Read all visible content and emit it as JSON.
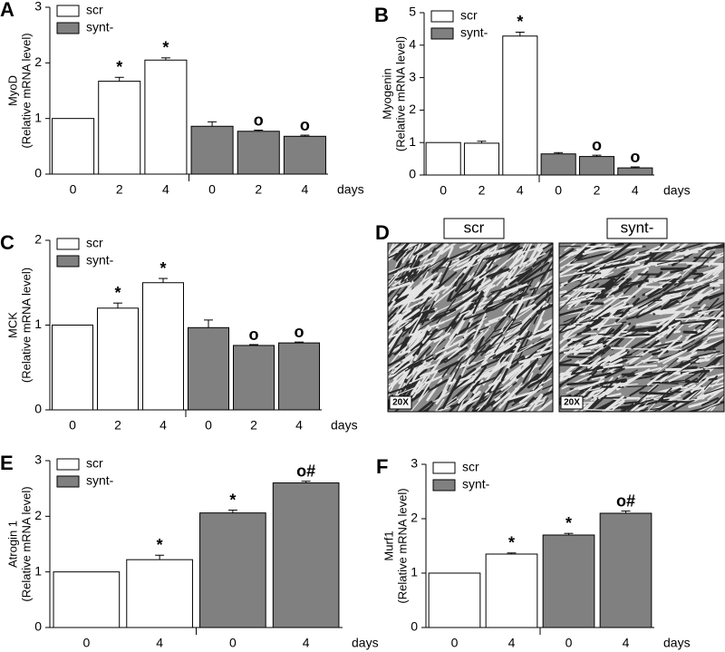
{
  "chart_data": [
    {
      "type": "bar",
      "panel": "A",
      "ylabel": [
        "MyoD",
        "(Relative mRNA level)"
      ],
      "xlabel": "days",
      "categories": [
        "0",
        "2",
        "4",
        "0",
        "2",
        "4"
      ],
      "ylim": [
        0,
        3
      ],
      "yticks": [
        0,
        1,
        2,
        3
      ],
      "series": [
        {
          "name": "scr",
          "color": "#ffffff",
          "values": [
            1,
            1.67,
            2.05,
            null,
            null,
            null
          ],
          "errors": [
            null,
            0.07,
            0.04,
            null,
            null,
            null
          ]
        },
        {
          "name": "synt-",
          "color": "#808080",
          "values": [
            null,
            null,
            null,
            0.86,
            0.77,
            0.68
          ],
          "errors": [
            null,
            null,
            null,
            0.08,
            0.02,
            0.02
          ]
        }
      ],
      "marks": [
        null,
        "*",
        "*",
        null,
        "o",
        "o"
      ]
    },
    {
      "type": "bar",
      "panel": "B",
      "ylabel": [
        "Myogenin",
        "(Relative mRNA level)"
      ],
      "xlabel": "days",
      "categories": [
        "0",
        "2",
        "4",
        "0",
        "2",
        "4"
      ],
      "ylim": [
        0,
        5
      ],
      "yticks": [
        0,
        1,
        2,
        3,
        4,
        5
      ],
      "series": [
        {
          "name": "scr",
          "color": "#ffffff",
          "values": [
            1,
            0.98,
            4.28,
            null,
            null,
            null
          ],
          "errors": [
            null,
            0.06,
            0.12,
            null,
            null,
            null
          ]
        },
        {
          "name": "synt-",
          "color": "#808080",
          "values": [
            null,
            null,
            null,
            0.65,
            0.57,
            0.22
          ],
          "errors": [
            null,
            null,
            null,
            0.04,
            0.04,
            0.03
          ]
        }
      ],
      "marks": [
        null,
        null,
        "*",
        null,
        "o",
        "o"
      ]
    },
    {
      "type": "bar",
      "panel": "C",
      "ylabel": [
        "MCK",
        "(Relative mRNA level)"
      ],
      "xlabel": "days",
      "categories": [
        "0",
        "2",
        "4",
        "0",
        "2",
        "4"
      ],
      "ylim": [
        0,
        2
      ],
      "yticks": [
        0,
        1,
        2
      ],
      "series": [
        {
          "name": "scr",
          "color": "#ffffff",
          "values": [
            1,
            1.2,
            1.5,
            null,
            null,
            null
          ],
          "errors": [
            null,
            0.06,
            0.05,
            null,
            null,
            null
          ]
        },
        {
          "name": "synt-",
          "color": "#808080",
          "values": [
            null,
            null,
            null,
            0.97,
            0.76,
            0.79
          ],
          "errors": [
            null,
            null,
            null,
            0.09,
            0.01,
            0.01
          ]
        }
      ],
      "marks": [
        null,
        "*",
        "*",
        null,
        "o",
        "o"
      ]
    },
    {
      "type": "bar",
      "panel": "E",
      "ylabel": [
        "Atrogin 1",
        "(Relative mRNA level)"
      ],
      "xlabel": "days",
      "categories": [
        "0",
        "4",
        "0",
        "4"
      ],
      "ylim": [
        0,
        3
      ],
      "yticks": [
        0,
        1,
        2,
        3
      ],
      "series": [
        {
          "name": "scr",
          "color": "#ffffff",
          "values": [
            1,
            1.22,
            null,
            null
          ],
          "errors": [
            null,
            0.08,
            null,
            null
          ]
        },
        {
          "name": "synt-",
          "color": "#808080",
          "values": [
            null,
            null,
            2.06,
            2.6
          ],
          "errors": [
            null,
            null,
            0.05,
            0.03
          ]
        }
      ],
      "marks": [
        null,
        "*",
        "*",
        "o#"
      ]
    },
    {
      "type": "bar",
      "panel": "F",
      "ylabel": [
        "Murf1",
        "(Relative mRNA level)"
      ],
      "xlabel": "days",
      "categories": [
        "0",
        "4",
        "0",
        "4"
      ],
      "ylim": [
        0,
        3
      ],
      "yticks": [
        0,
        1,
        2,
        3
      ],
      "series": [
        {
          "name": "scr",
          "color": "#ffffff",
          "values": [
            1,
            1.35,
            null,
            null
          ],
          "errors": [
            null,
            0.02,
            null,
            null
          ]
        },
        {
          "name": "synt-",
          "color": "#808080",
          "values": [
            null,
            null,
            1.7,
            2.1
          ],
          "errors": [
            null,
            null,
            0.03,
            0.04
          ]
        }
      ],
      "marks": [
        null,
        "*",
        "*",
        "o#"
      ]
    }
  ],
  "panel_d": {
    "panel": "D",
    "images": [
      {
        "label": "scr",
        "magnification": "20X"
      },
      {
        "label": "synt-",
        "magnification": "20X"
      }
    ]
  }
}
